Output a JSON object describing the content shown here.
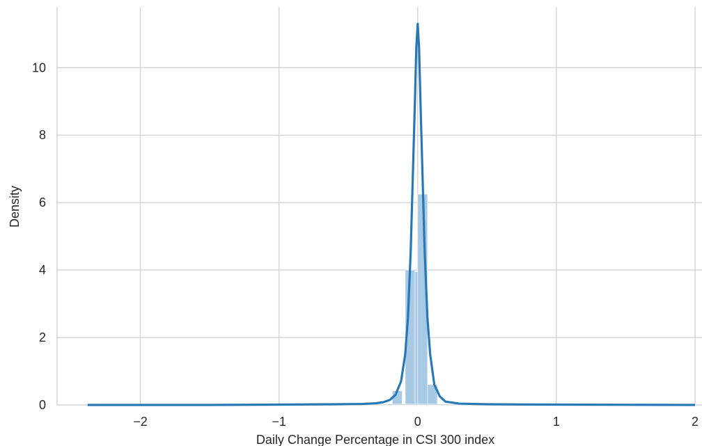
{
  "chart_data": {
    "type": "histogram_with_kde",
    "xlabel": "Daily Change Percentage in CSI 300 index",
    "ylabel": "Density",
    "xlim": [
      -2.6,
      2.05
    ],
    "ylim": [
      0,
      11.8
    ],
    "xticks": [
      {
        "value": -2,
        "label": "−2"
      },
      {
        "value": -1,
        "label": "−1"
      },
      {
        "value": 0,
        "label": "0"
      },
      {
        "value": 1,
        "label": "1"
      },
      {
        "value": 2,
        "label": "2"
      }
    ],
    "yticks": [
      {
        "value": 0,
        "label": "0"
      },
      {
        "value": 2,
        "label": "2"
      },
      {
        "value": 4,
        "label": "4"
      },
      {
        "value": 6,
        "label": "6"
      },
      {
        "value": 8,
        "label": "8"
      },
      {
        "value": 10,
        "label": "10"
      }
    ],
    "grid": true,
    "histogram": {
      "color": "#a7c9e3",
      "bins": [
        {
          "x0": -0.183,
          "x1": -0.112,
          "density": 0.42
        },
        {
          "x0": -0.112,
          "x1": -0.041,
          "density": 0.02
        },
        {
          "x0": -0.09,
          "x1": -0.019,
          "density": 4.0
        },
        {
          "x0": -0.019,
          "x1": 0.052,
          "density": 3.95
        },
        {
          "x0": 0.0,
          "x1": 0.071,
          "density": 6.25
        },
        {
          "x0": 0.071,
          "x1": 0.142,
          "density": 0.6
        },
        {
          "x0": -2.35,
          "x1": 2.0,
          "density": 0.01
        }
      ]
    },
    "kde": {
      "color": "#2878b5",
      "x": [
        -2.38,
        -1.5,
        -1.0,
        -0.6,
        -0.4,
        -0.3,
        -0.25,
        -0.2,
        -0.16,
        -0.12,
        -0.09,
        -0.07,
        -0.05,
        -0.035,
        -0.02,
        -0.01,
        0.0,
        0.01,
        0.02,
        0.035,
        0.05,
        0.07,
        0.09,
        0.12,
        0.16,
        0.2,
        0.3,
        0.5,
        1.0,
        2.0
      ],
      "y": [
        0.0,
        0.0,
        0.01,
        0.02,
        0.03,
        0.05,
        0.08,
        0.15,
        0.3,
        0.7,
        1.5,
        2.6,
        4.6,
        6.8,
        9.0,
        10.6,
        11.3,
        10.6,
        9.0,
        6.8,
        4.6,
        2.6,
        1.5,
        0.6,
        0.25,
        0.1,
        0.04,
        0.02,
        0.01,
        0.0
      ]
    }
  }
}
